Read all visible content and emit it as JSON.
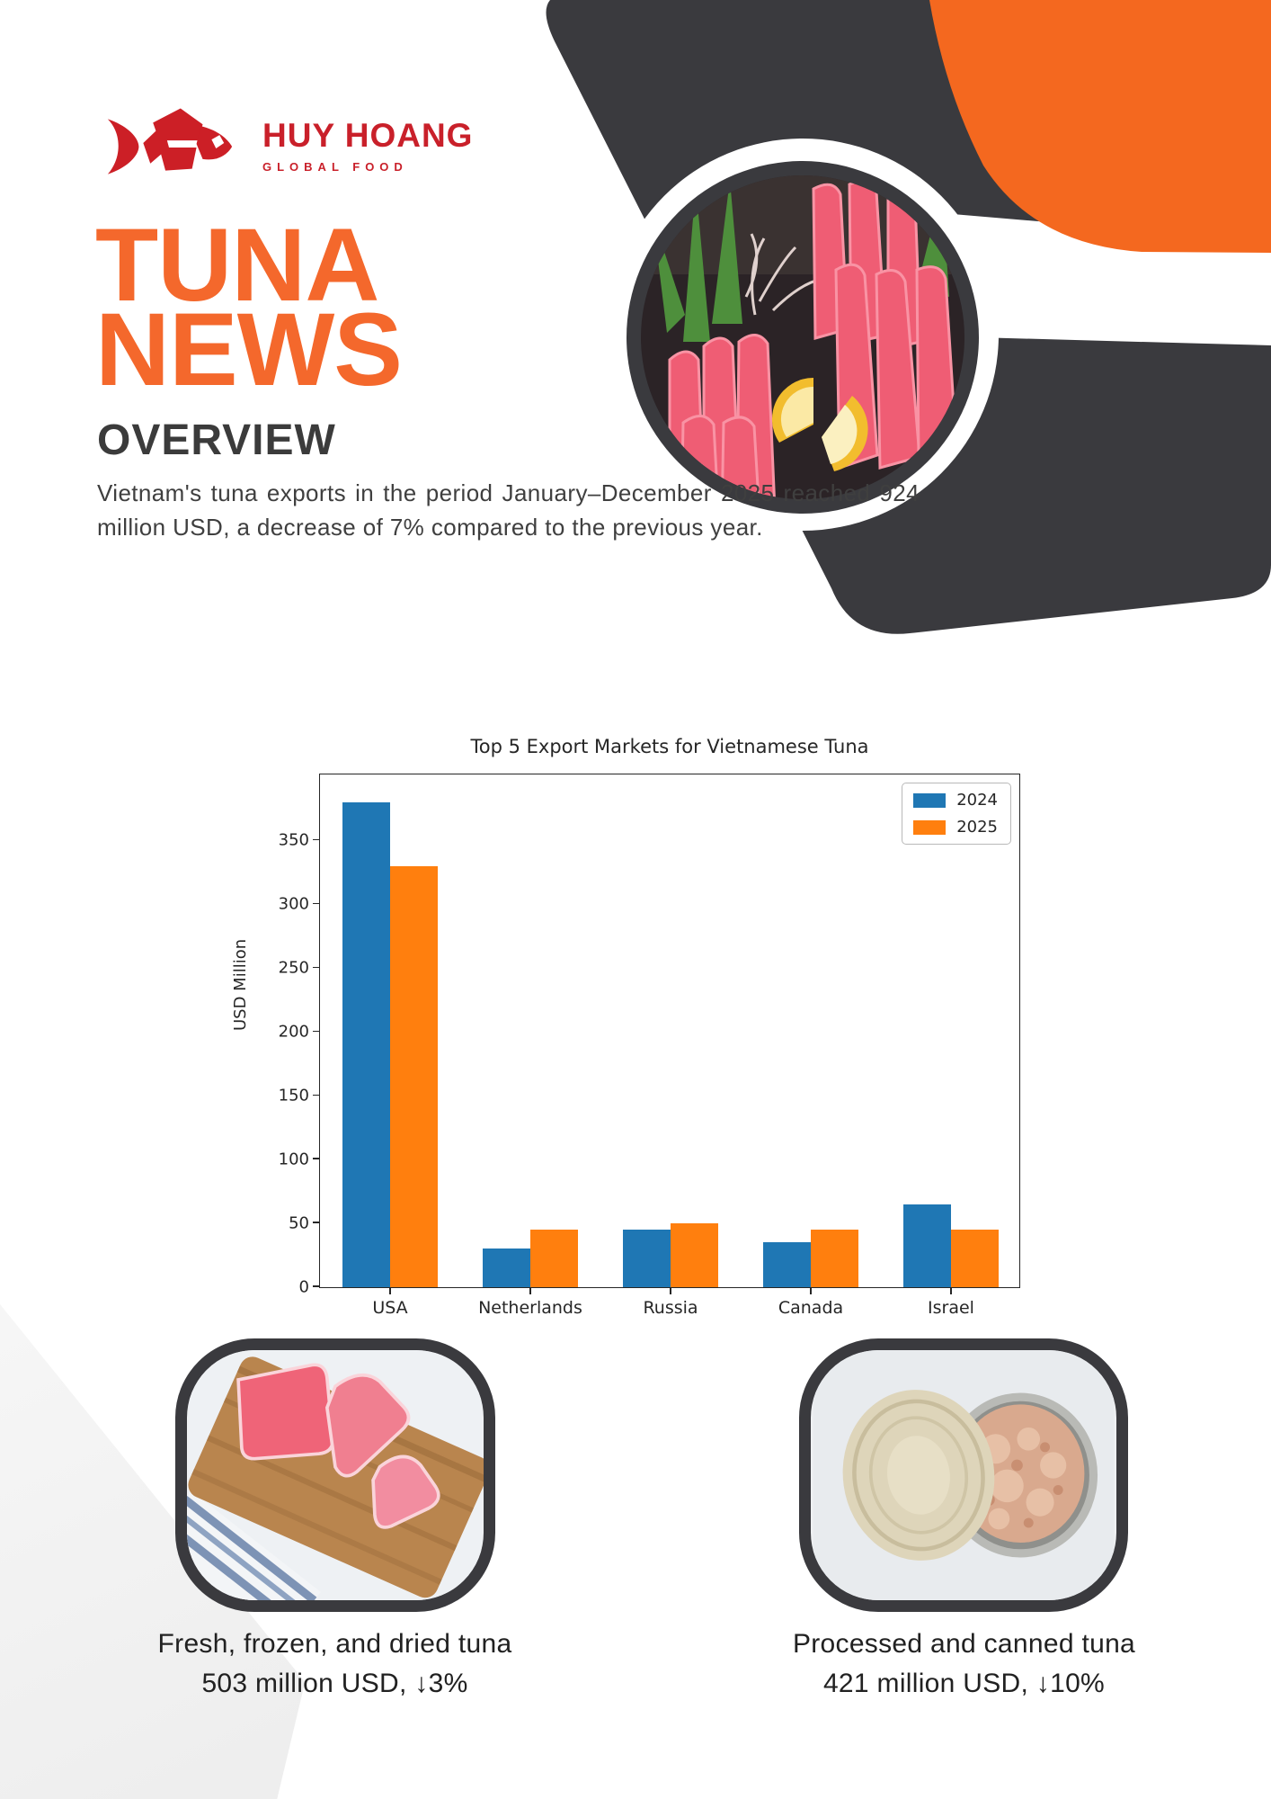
{
  "brand": {
    "name": "HUY HOANG",
    "tagline": "GLOBAL FOOD"
  },
  "masthead": {
    "title_line1": "TUNA",
    "title_line2": "NEWS"
  },
  "overview": {
    "heading": "OVERVIEW",
    "body_line1": "Vietnam's tuna exports in the period January–December 2025 reached 924",
    "body_line2": "million USD, a decrease of 7% compared to the previous year."
  },
  "chart_data": {
    "type": "bar",
    "title": "Top 5 Export Markets for Vietnamese Tuna",
    "categories": [
      "USA",
      "Netherlands",
      "Russia",
      "Canada",
      "Israel"
    ],
    "series": [
      {
        "name": "2024",
        "color": "#1f77b4",
        "values": [
          380,
          30,
          45,
          35,
          65
        ]
      },
      {
        "name": "2025",
        "color": "#ff7f0e",
        "values": [
          330,
          45,
          50,
          45,
          45
        ]
      }
    ],
    "xlabel": "",
    "ylabel": "USD Million",
    "ylim": [
      0,
      403
    ],
    "yticks": [
      0,
      50,
      100,
      150,
      200,
      250,
      300,
      350
    ],
    "grid": false,
    "legend_position": "upper right"
  },
  "highlights": [
    {
      "caption": "Fresh, frozen, and dried tuna",
      "stat": "503 million USD, ↓3%"
    },
    {
      "caption": "Processed and canned tuna",
      "stat": "421 million USD, ↓10%"
    }
  ],
  "colors": {
    "accent_orange": "#f4682c",
    "brand_red": "#c9202a",
    "dark_charcoal": "#3a3a3e",
    "series_2024_blue": "#1f77b4",
    "series_2025_orange": "#ff7f0e"
  }
}
